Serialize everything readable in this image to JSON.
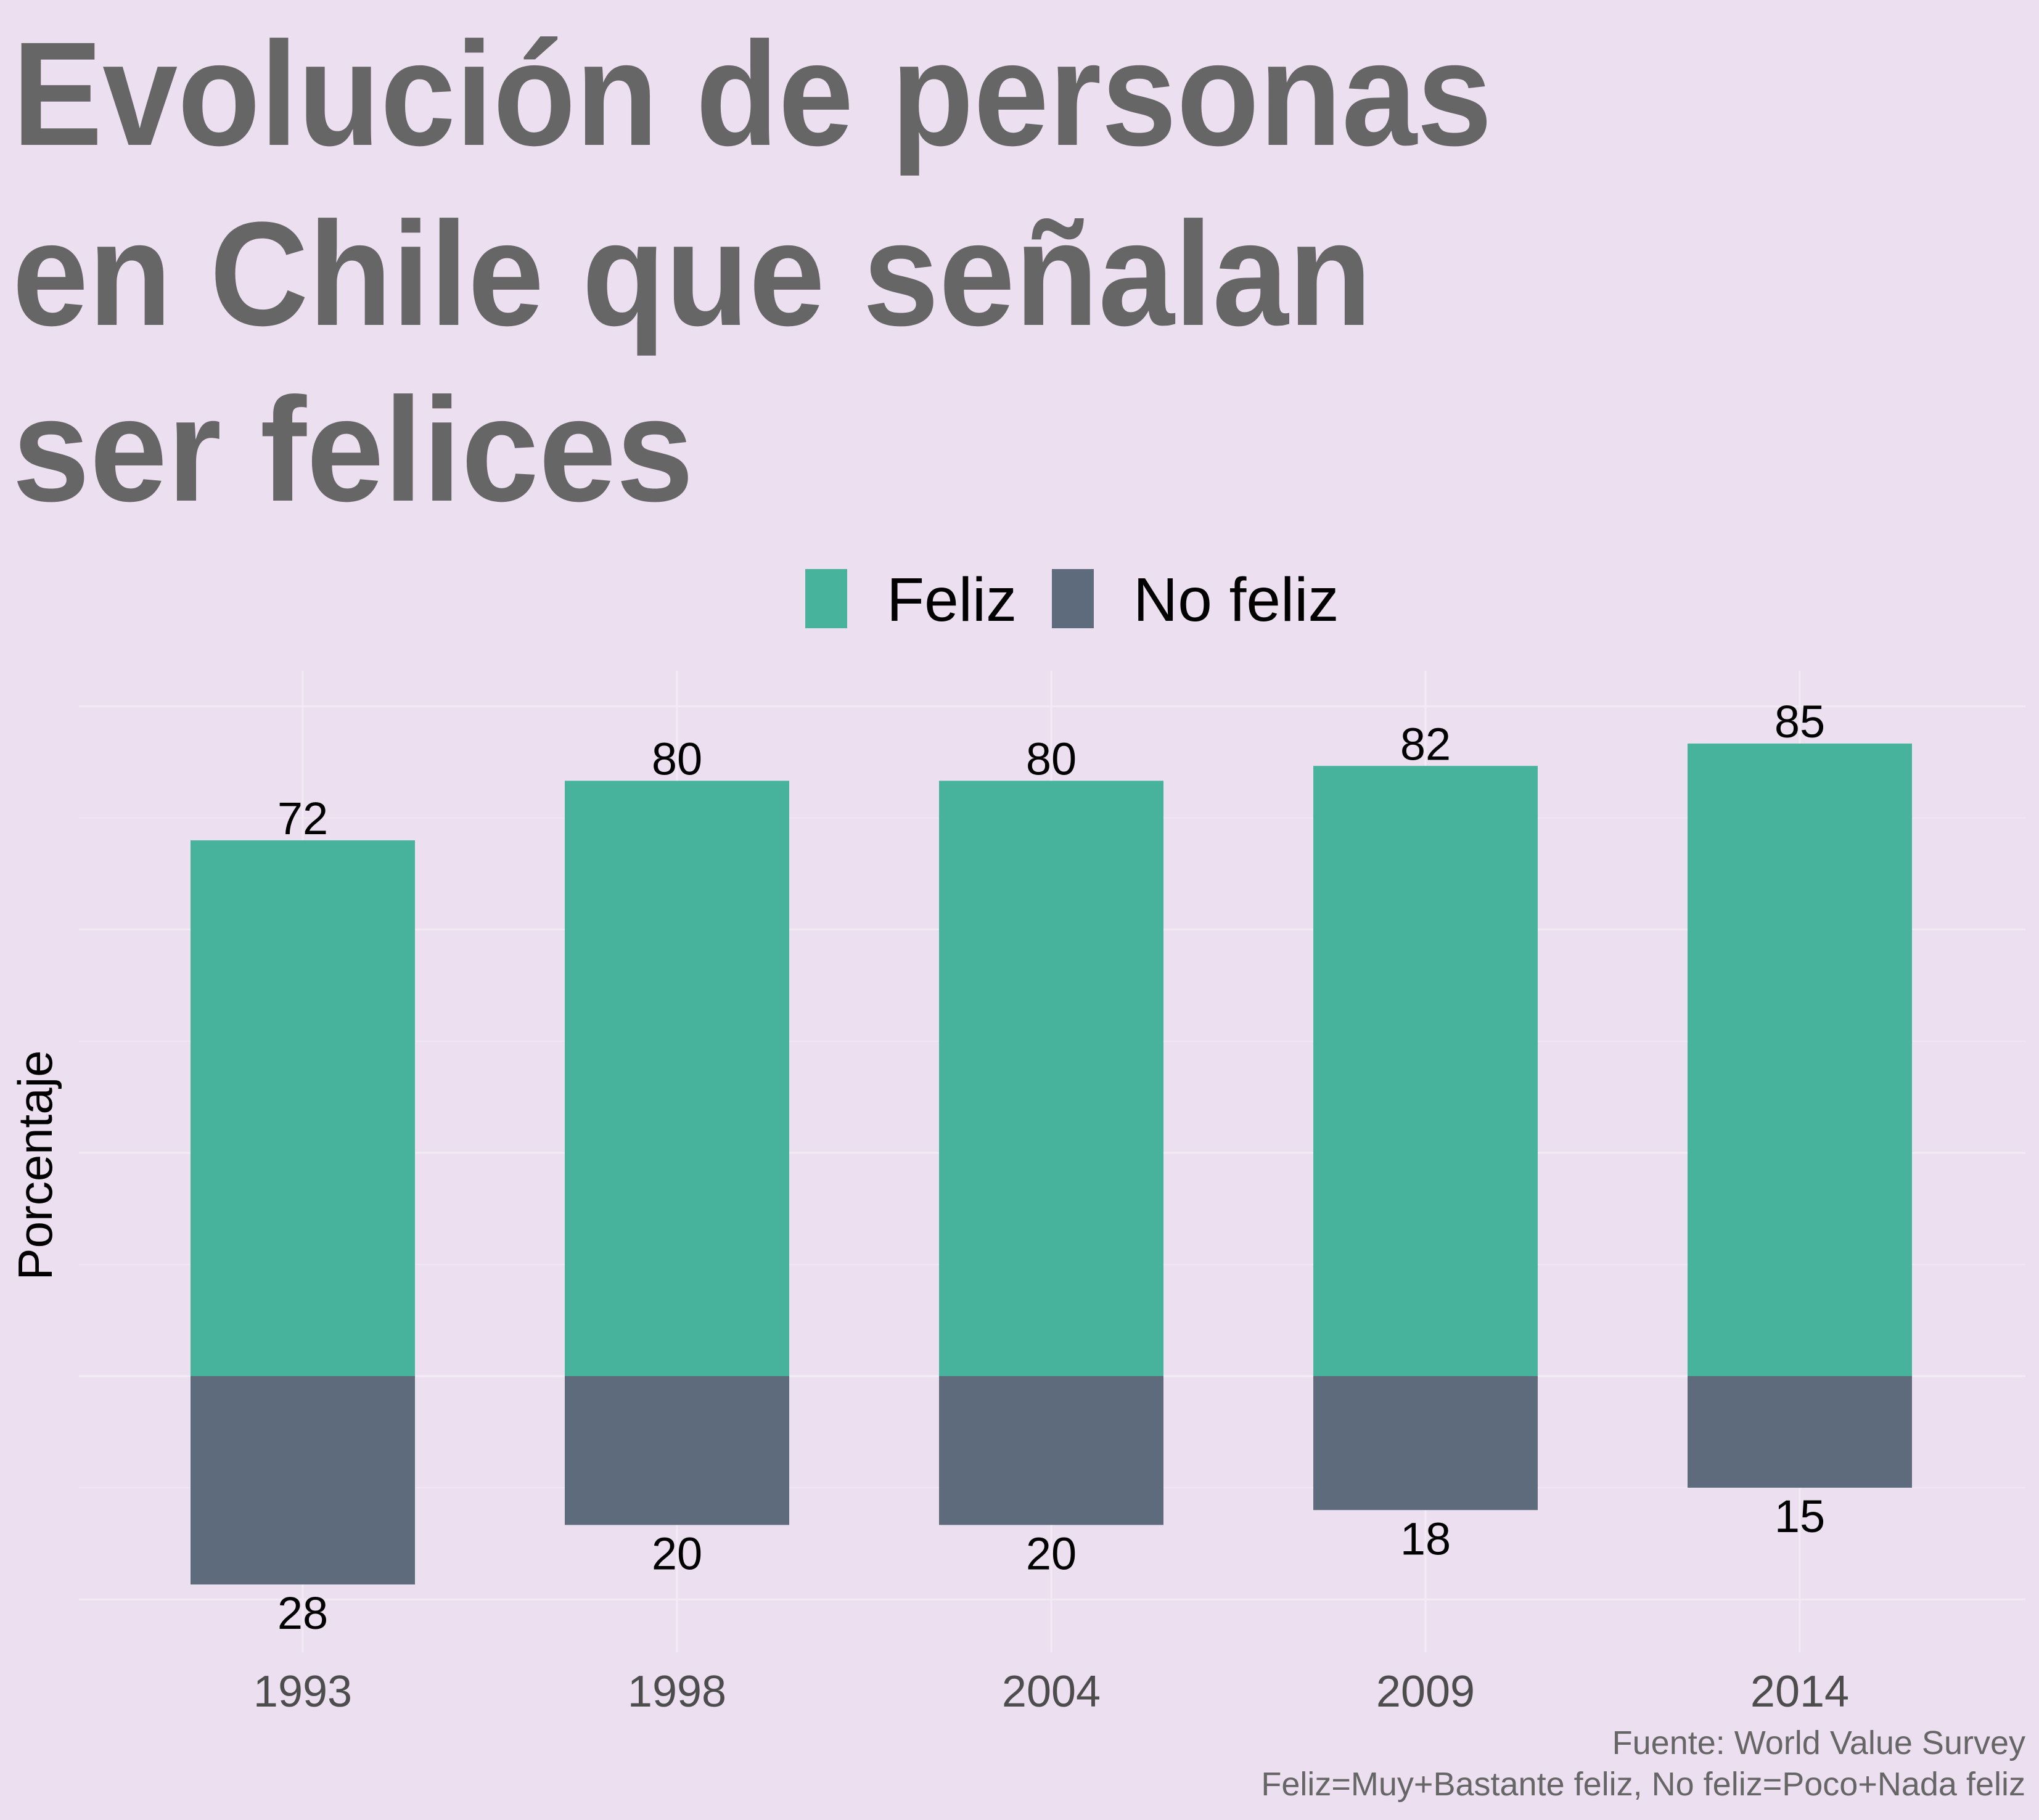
{
  "title_lines": [
    "Evolución de personas",
    "en Chile que señalan",
    "ser felices"
  ],
  "caption_lines": [
    "Fuente: World Value Survey",
    "Feliz=Muy+Bastante feliz, No feliz=Poco+Nada feliz"
  ],
  "colors": {
    "background": "#ECDFEF",
    "feliz": "#47B39D",
    "no_feliz": "#5D6B7C"
  },
  "chart_data": {
    "type": "bar",
    "stacked": "diverging",
    "categories": [
      "1993",
      "1998",
      "2004",
      "2009",
      "2014"
    ],
    "series": [
      {
        "name": "Feliz",
        "values": [
          72,
          80,
          80,
          82,
          85
        ]
      },
      {
        "name": "No feliz",
        "values": [
          28,
          20,
          20,
          18,
          15
        ]
      }
    ],
    "xlabel": "",
    "ylabel": "Porcentaje",
    "ylim": [
      -36,
      95
    ],
    "y_tick_labels_shown": false,
    "grid": true,
    "legend_position": "top"
  }
}
